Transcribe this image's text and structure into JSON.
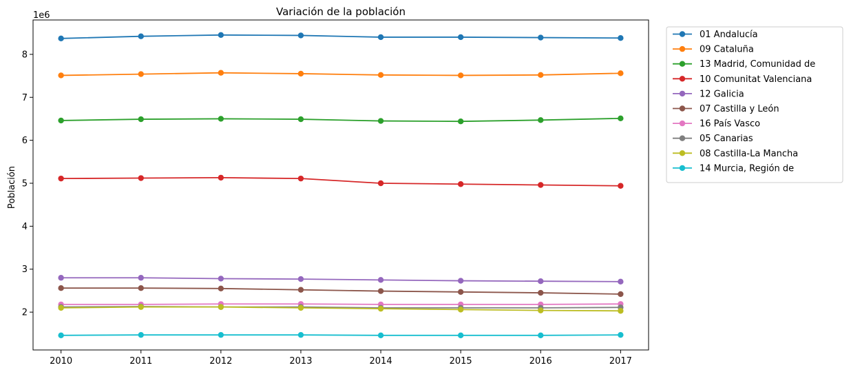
{
  "chart_data": {
    "type": "line",
    "title": "Variación de la población",
    "xlabel": "",
    "ylabel": "Población",
    "y_scale_label": "1e6",
    "x": [
      2010,
      2011,
      2012,
      2013,
      2014,
      2015,
      2016,
      2017
    ],
    "x_tick_labels": [
      "2010",
      "2011",
      "2012",
      "2013",
      "2014",
      "2015",
      "2016",
      "2017"
    ],
    "y_ticks": [
      2,
      3,
      4,
      5,
      6,
      7,
      8
    ],
    "y_tick_labels": [
      "2",
      "3",
      "4",
      "5",
      "6",
      "7",
      "8"
    ],
    "ylim": [
      1.12,
      8.8
    ],
    "xlim": [
      2009.65,
      2017.35
    ],
    "grid": false,
    "legend_placement": "outside-right",
    "marker": "circle",
    "series": [
      {
        "name": "01 Andalucía",
        "color": "#1f77b4",
        "values": [
          8.37,
          8.42,
          8.45,
          8.44,
          8.4,
          8.4,
          8.39,
          8.38
        ]
      },
      {
        "name": "09 Cataluña",
        "color": "#ff7f0e",
        "values": [
          7.51,
          7.54,
          7.57,
          7.55,
          7.52,
          7.51,
          7.52,
          7.56
        ]
      },
      {
        "name": "13 Madrid, Comunidad de",
        "color": "#2ca02c",
        "values": [
          6.46,
          6.49,
          6.5,
          6.49,
          6.45,
          6.44,
          6.47,
          6.51
        ]
      },
      {
        "name": "10 Comunitat Valenciana",
        "color": "#d62728",
        "values": [
          5.11,
          5.12,
          5.13,
          5.11,
          5.0,
          4.98,
          4.96,
          4.94
        ]
      },
      {
        "name": "12 Galicia",
        "color": "#9467bd",
        "values": [
          2.8,
          2.8,
          2.78,
          2.77,
          2.75,
          2.73,
          2.72,
          2.71
        ]
      },
      {
        "name": "07 Castilla y León",
        "color": "#8c564b",
        "values": [
          2.56,
          2.56,
          2.55,
          2.52,
          2.49,
          2.47,
          2.45,
          2.42
        ]
      },
      {
        "name": "16 País Vasco",
        "color": "#e377c2",
        "values": [
          2.18,
          2.18,
          2.19,
          2.19,
          2.18,
          2.18,
          2.18,
          2.19
        ]
      },
      {
        "name": "05 Canarias",
        "color": "#7f7f7f",
        "values": [
          2.12,
          2.13,
          2.12,
          2.12,
          2.1,
          2.1,
          2.1,
          2.11
        ]
      },
      {
        "name": "08 Castilla-La Mancha",
        "color": "#bcbd22",
        "values": [
          2.1,
          2.12,
          2.12,
          2.1,
          2.08,
          2.06,
          2.04,
          2.03
        ]
      },
      {
        "name": "14 Murcia, Región de",
        "color": "#17becf",
        "values": [
          1.46,
          1.47,
          1.47,
          1.47,
          1.46,
          1.46,
          1.46,
          1.47
        ]
      }
    ]
  }
}
